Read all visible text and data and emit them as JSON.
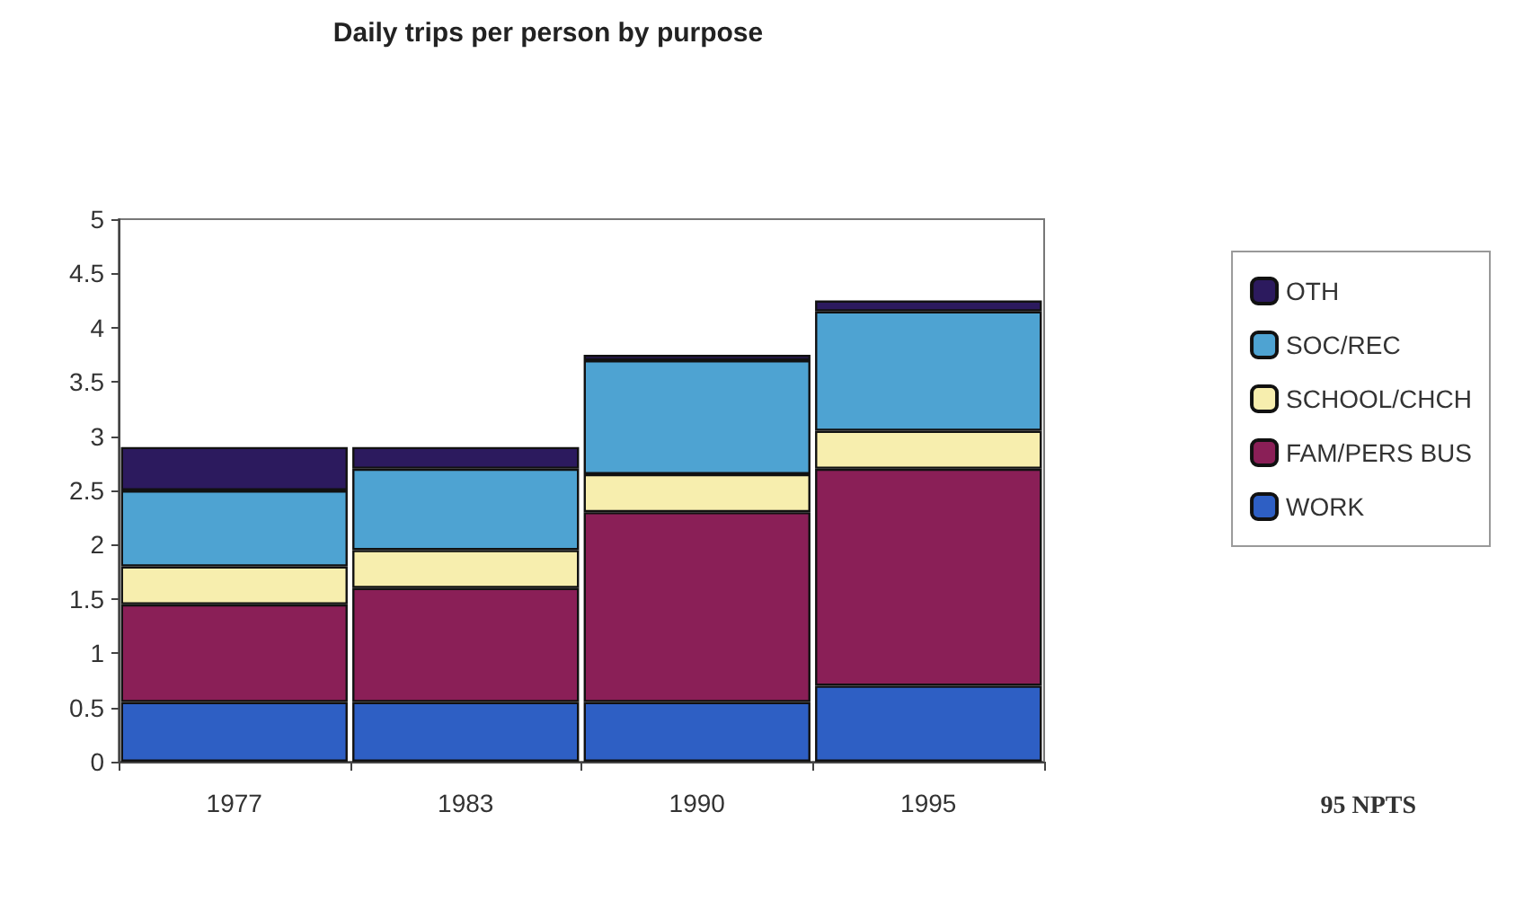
{
  "chart_data": {
    "type": "bar",
    "title": "Daily trips per person by purpose",
    "categories": [
      "1977",
      "1983",
      "1990",
      "1995"
    ],
    "stacked": true,
    "ylim": [
      0,
      5
    ],
    "yticks": [
      0,
      0.5,
      1,
      1.5,
      2,
      2.5,
      3,
      3.5,
      4,
      4.5,
      5
    ],
    "grid": false,
    "legend": "right",
    "annotations": [
      "95 NPTS"
    ],
    "series": [
      {
        "name": "WORK",
        "color": "#2e5fc4",
        "values": [
          0.55,
          0.55,
          0.55,
          0.7
        ]
      },
      {
        "name": "FAM/PERS BUS",
        "color": "#8a1f57",
        "values": [
          0.9,
          1.05,
          1.75,
          2.0
        ]
      },
      {
        "name": "SCHOOL/CHCH",
        "color": "#f7eeae",
        "values": [
          0.35,
          0.35,
          0.35,
          0.35
        ]
      },
      {
        "name": "SOC/REC",
        "color": "#4ea3d2",
        "values": [
          0.7,
          0.75,
          1.05,
          1.1
        ]
      },
      {
        "name": "OTH",
        "color": "#2c1a5e",
        "values": [
          0.4,
          0.2,
          0.05,
          0.1
        ]
      }
    ]
  }
}
